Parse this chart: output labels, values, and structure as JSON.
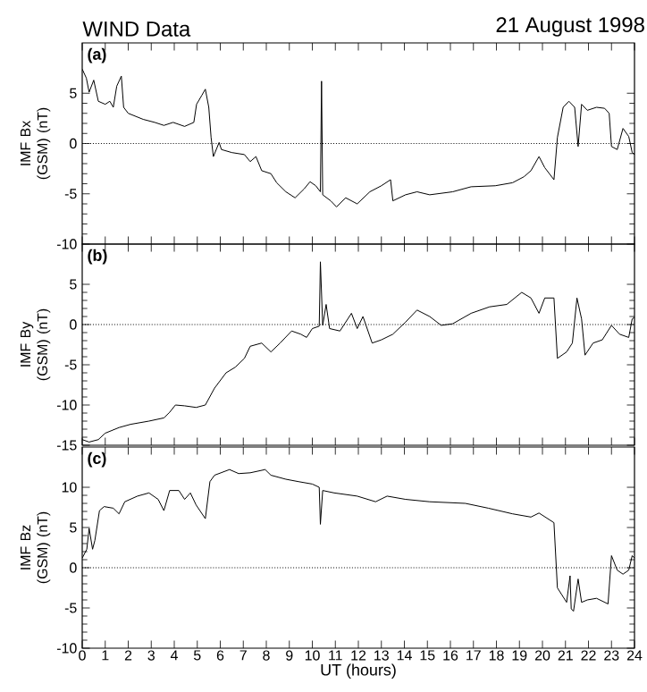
{
  "chart_data": [
    {
      "type": "line",
      "title": "WIND Data",
      "subtitle": "21 August 1998",
      "ylabel": "IMF Bx (GSM) (nT)",
      "annotations": [
        "(a)"
      ],
      "tick_labels": "y",
      "xlim": [
        0,
        24
      ],
      "xticks": [
        0,
        1,
        2,
        3,
        4,
        5,
        6,
        7,
        8,
        9,
        10,
        11,
        12,
        13,
        14,
        15,
        16,
        17,
        18,
        19,
        20,
        21,
        22,
        23,
        24
      ],
      "ylim": [
        -10,
        10
      ],
      "yticks": [
        -10,
        -5,
        0,
        5
      ],
      "ref_lines": [
        {
          "axis": "y",
          "value": 0,
          "line_style": "dotted"
        }
      ],
      "series": [
        {
          "color": "#000000",
          "x": [
            0,
            0.18,
            0.3,
            0.5,
            0.7,
            1.0,
            1.2,
            1.35,
            1.5,
            1.7,
            1.8,
            2.0,
            2.65,
            3.15,
            3.55,
            3.95,
            4.45,
            4.85,
            4.97,
            5.2,
            5.35,
            5.5,
            5.6,
            5.7,
            5.95,
            6.05,
            6.5,
            7.05,
            7.3,
            7.55,
            7.8,
            8.2,
            8.45,
            8.85,
            9.25,
            9.65,
            9.9,
            10.15,
            10.35,
            10.4,
            10.45,
            10.8,
            11.05,
            11.45,
            11.95,
            12.5,
            13.0,
            13.4,
            13.5,
            14.05,
            14.55,
            15.1,
            16.1,
            16.9,
            17.95,
            18.7,
            19.2,
            19.5,
            19.85,
            20.1,
            20.5,
            20.65,
            20.9,
            21.15,
            21.4,
            21.55,
            21.7,
            21.95,
            22.35,
            22.7,
            22.9,
            23.0,
            23.25,
            23.5,
            23.75,
            23.9,
            24
          ],
          "values": [
            7.4,
            6.5,
            5.1,
            6.3,
            4.2,
            3.9,
            4.2,
            3.6,
            5.7,
            6.7,
            3.6,
            3.0,
            2.4,
            2.1,
            1.8,
            2.1,
            1.7,
            2.1,
            3.9,
            4.8,
            5.4,
            3.6,
            0.6,
            -1.3,
            0.1,
            -0.6,
            -0.9,
            -1.1,
            -1.8,
            -1.3,
            -2.7,
            -3.0,
            -3.9,
            -4.8,
            -5.4,
            -4.5,
            -3.8,
            -4.2,
            -4.8,
            6.2,
            -5.1,
            -5.7,
            -6.3,
            -5.4,
            -6.0,
            -4.8,
            -4.2,
            -3.6,
            -5.7,
            -5.1,
            -4.8,
            -5.1,
            -4.8,
            -4.3,
            -4.2,
            -3.9,
            -3.3,
            -2.7,
            -1.3,
            -2.4,
            -3.6,
            0.6,
            3.6,
            4.2,
            3.6,
            -0.3,
            3.9,
            3.3,
            3.6,
            3.5,
            3.0,
            -0.3,
            -0.6,
            1.5,
            0.7,
            -0.9,
            -1.1
          ]
        }
      ]
    },
    {
      "type": "line",
      "ylabel": "IMF By (GSM) (nT)",
      "annotations": [
        "(b)"
      ],
      "tick_labels": "y",
      "xlim": [
        0,
        24
      ],
      "xticks": [
        0,
        1,
        2,
        3,
        4,
        5,
        6,
        7,
        8,
        9,
        10,
        11,
        12,
        13,
        14,
        15,
        16,
        17,
        18,
        19,
        20,
        21,
        22,
        23,
        24
      ],
      "ylim": [
        -15,
        10
      ],
      "yticks": [
        -15,
        -10,
        -5,
        0,
        5
      ],
      "ref_lines": [
        {
          "axis": "y",
          "value": 0,
          "line_style": "dotted"
        }
      ],
      "series": [
        {
          "color": "#000000",
          "x": [
            0,
            0.3,
            0.7,
            1.0,
            1.6,
            2.1,
            2.9,
            3.55,
            3.8,
            4.05,
            4.45,
            4.95,
            5.35,
            5.75,
            6.25,
            6.65,
            7.05,
            7.3,
            7.8,
            8.2,
            8.6,
            9.1,
            9.5,
            9.75,
            10.0,
            10.3,
            10.35,
            10.45,
            10.6,
            10.75,
            11.2,
            11.7,
            11.95,
            12.2,
            12.6,
            13.0,
            13.5,
            14.05,
            14.55,
            15.1,
            15.6,
            16.1,
            16.9,
            17.7,
            18.45,
            19.1,
            19.5,
            19.85,
            20.1,
            20.5,
            20.65,
            21.05,
            21.3,
            21.5,
            21.7,
            21.85,
            22.2,
            22.6,
            23.0,
            23.35,
            23.75,
            23.9,
            24
          ],
          "values": [
            -14.3,
            -14.6,
            -14.3,
            -13.5,
            -12.8,
            -12.4,
            -12.0,
            -11.6,
            -10.9,
            -10.0,
            -10.1,
            -10.3,
            -10.0,
            -7.9,
            -6.0,
            -5.3,
            -4.2,
            -2.7,
            -2.3,
            -3.4,
            -2.3,
            -0.8,
            -1.2,
            -1.6,
            -0.5,
            -0.2,
            7.8,
            -0.1,
            2.5,
            -0.5,
            -0.8,
            1.4,
            -0.5,
            1.0,
            -2.3,
            -1.9,
            -1.2,
            0.3,
            1.8,
            1.0,
            -0.1,
            0.1,
            1.4,
            2.2,
            2.5,
            4.0,
            3.3,
            1.4,
            3.3,
            3.3,
            -4.2,
            -3.4,
            -2.3,
            3.3,
            0.7,
            -3.8,
            -2.3,
            -1.9,
            -0.1,
            -1.2,
            -1.6,
            0.7,
            0.9
          ]
        }
      ]
    },
    {
      "type": "line",
      "ylabel": "IMF Bz (GSM) (nT)",
      "xlabel": "UT (hours)",
      "annotations": [
        "(c)"
      ],
      "xlim": [
        0,
        24
      ],
      "xticks": [
        0,
        1,
        2,
        3,
        4,
        5,
        6,
        7,
        8,
        9,
        10,
        11,
        12,
        13,
        14,
        15,
        16,
        17,
        18,
        19,
        20,
        21,
        22,
        23,
        24
      ],
      "ylim": [
        -10,
        15
      ],
      "yticks": [
        -10,
        -5,
        0,
        5,
        10
      ],
      "ref_lines": [
        {
          "axis": "y",
          "value": 0,
          "line_style": "dotted"
        }
      ],
      "series": [
        {
          "color": "#000000",
          "x": [
            0,
            0.2,
            0.3,
            0.45,
            0.55,
            0.75,
            0.95,
            1.35,
            1.6,
            1.85,
            2.4,
            2.9,
            3.3,
            3.55,
            3.8,
            4.2,
            4.45,
            4.7,
            4.95,
            5.35,
            5.55,
            5.75,
            6.4,
            6.8,
            7.3,
            7.95,
            8.2,
            8.85,
            9.4,
            10.0,
            10.3,
            10.35,
            10.45,
            10.95,
            11.95,
            12.75,
            13.25,
            14.05,
            15.1,
            16.65,
            17.65,
            18.7,
            19.5,
            19.85,
            20.5,
            20.65,
            21.05,
            21.2,
            21.25,
            21.35,
            21.55,
            21.7,
            21.95,
            22.35,
            22.85,
            23.0,
            23.25,
            23.5,
            23.75,
            23.9,
            24
          ],
          "values": [
            1.2,
            2.3,
            4.9,
            2.3,
            3.4,
            7.1,
            7.6,
            7.4,
            6.7,
            8.2,
            8.9,
            9.3,
            8.5,
            7.1,
            9.6,
            9.6,
            8.5,
            9.3,
            7.8,
            6.1,
            10.7,
            11.5,
            12.2,
            11.7,
            11.8,
            12.2,
            11.5,
            11.0,
            10.7,
            10.4,
            10.0,
            5.4,
            9.6,
            9.3,
            8.9,
            8.2,
            8.9,
            8.5,
            8.2,
            8.0,
            7.4,
            6.7,
            6.3,
            6.8,
            5.6,
            -2.5,
            -4.3,
            -1.0,
            -5.1,
            -5.4,
            -1.4,
            -4.3,
            -4.0,
            -3.8,
            -4.5,
            1.5,
            -0.3,
            -0.8,
            -0.3,
            1.5,
            1.2
          ]
        }
      ]
    }
  ]
}
